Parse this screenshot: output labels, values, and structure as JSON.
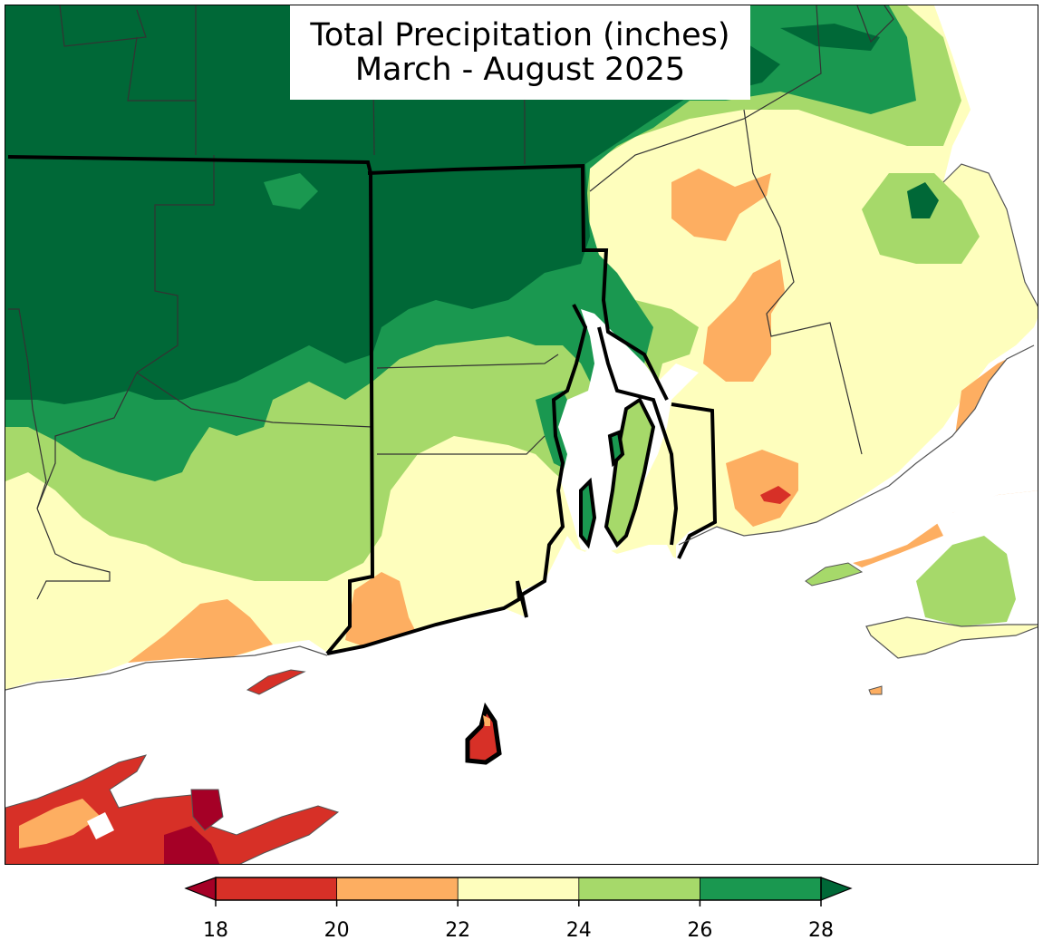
{
  "title": {
    "line1": "Total Precipitation (inches)",
    "line2": "March - August 2025"
  },
  "legend": {
    "ticks": [
      "18",
      "20",
      "22",
      "24",
      "26",
      "28"
    ],
    "bins": [
      {
        "min": 18,
        "max": 20,
        "color": "#d73027"
      },
      {
        "min": 20,
        "max": 22,
        "color": "#fdae61"
      },
      {
        "min": 22,
        "max": 24,
        "color": "#fefebd"
      },
      {
        "min": 24,
        "max": 26,
        "color": "#a6d96a"
      },
      {
        "min": 26,
        "max": 28,
        "color": "#1a9850"
      }
    ],
    "under_color": "#a50026",
    "over_color": "#006837",
    "extend": "both"
  },
  "palette": {
    "below_18": "#a50026",
    "18_20": "#d73027",
    "20_22": "#fdae61",
    "22_24": "#fefebd",
    "24_26": "#a6d96a",
    "26_28": "#1a9850",
    "above_28": "#006837",
    "water": "#ffffff",
    "state_border": "#000000",
    "county_border": "#333333"
  }
}
